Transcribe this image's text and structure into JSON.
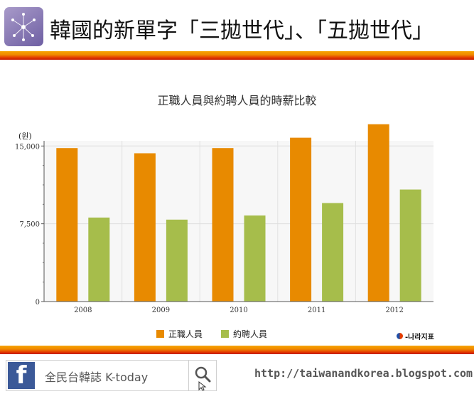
{
  "header": {
    "title": "韓國的新單字「三拋世代」、「五拋世代」",
    "logo_icon": "network-star-icon"
  },
  "chart_data": {
    "type": "bar",
    "title": "正職人員與約聘人員的時薪比較",
    "ylabel": "(원)",
    "xlabel": "",
    "categories": [
      "2008",
      "2009",
      "2010",
      "2011",
      "2012"
    ],
    "series": [
      {
        "name": "正職人員",
        "color": "#e88a00",
        "values": [
          14800,
          14300,
          14800,
          15800,
          17100
        ]
      },
      {
        "name": "約聘人員",
        "color": "#a6bd4b",
        "values": [
          8100,
          7900,
          8300,
          9500,
          10800
        ]
      }
    ],
    "ylim": [
      0,
      15500
    ],
    "yticks": [
      0,
      7500,
      15000
    ],
    "ytick_labels": [
      "0",
      "7,500",
      "15,000"
    ],
    "grid": true,
    "legend_position": "bottom-center"
  },
  "source": {
    "label": "-나라지표",
    "icon": "nara-logo-icon"
  },
  "footer": {
    "facebook_icon": "facebook-icon",
    "page_name": "全民台韓誌  K-today",
    "search_icon": "search-cursor-icon",
    "url": "http://taiwanandkorea.blogspot.com"
  }
}
